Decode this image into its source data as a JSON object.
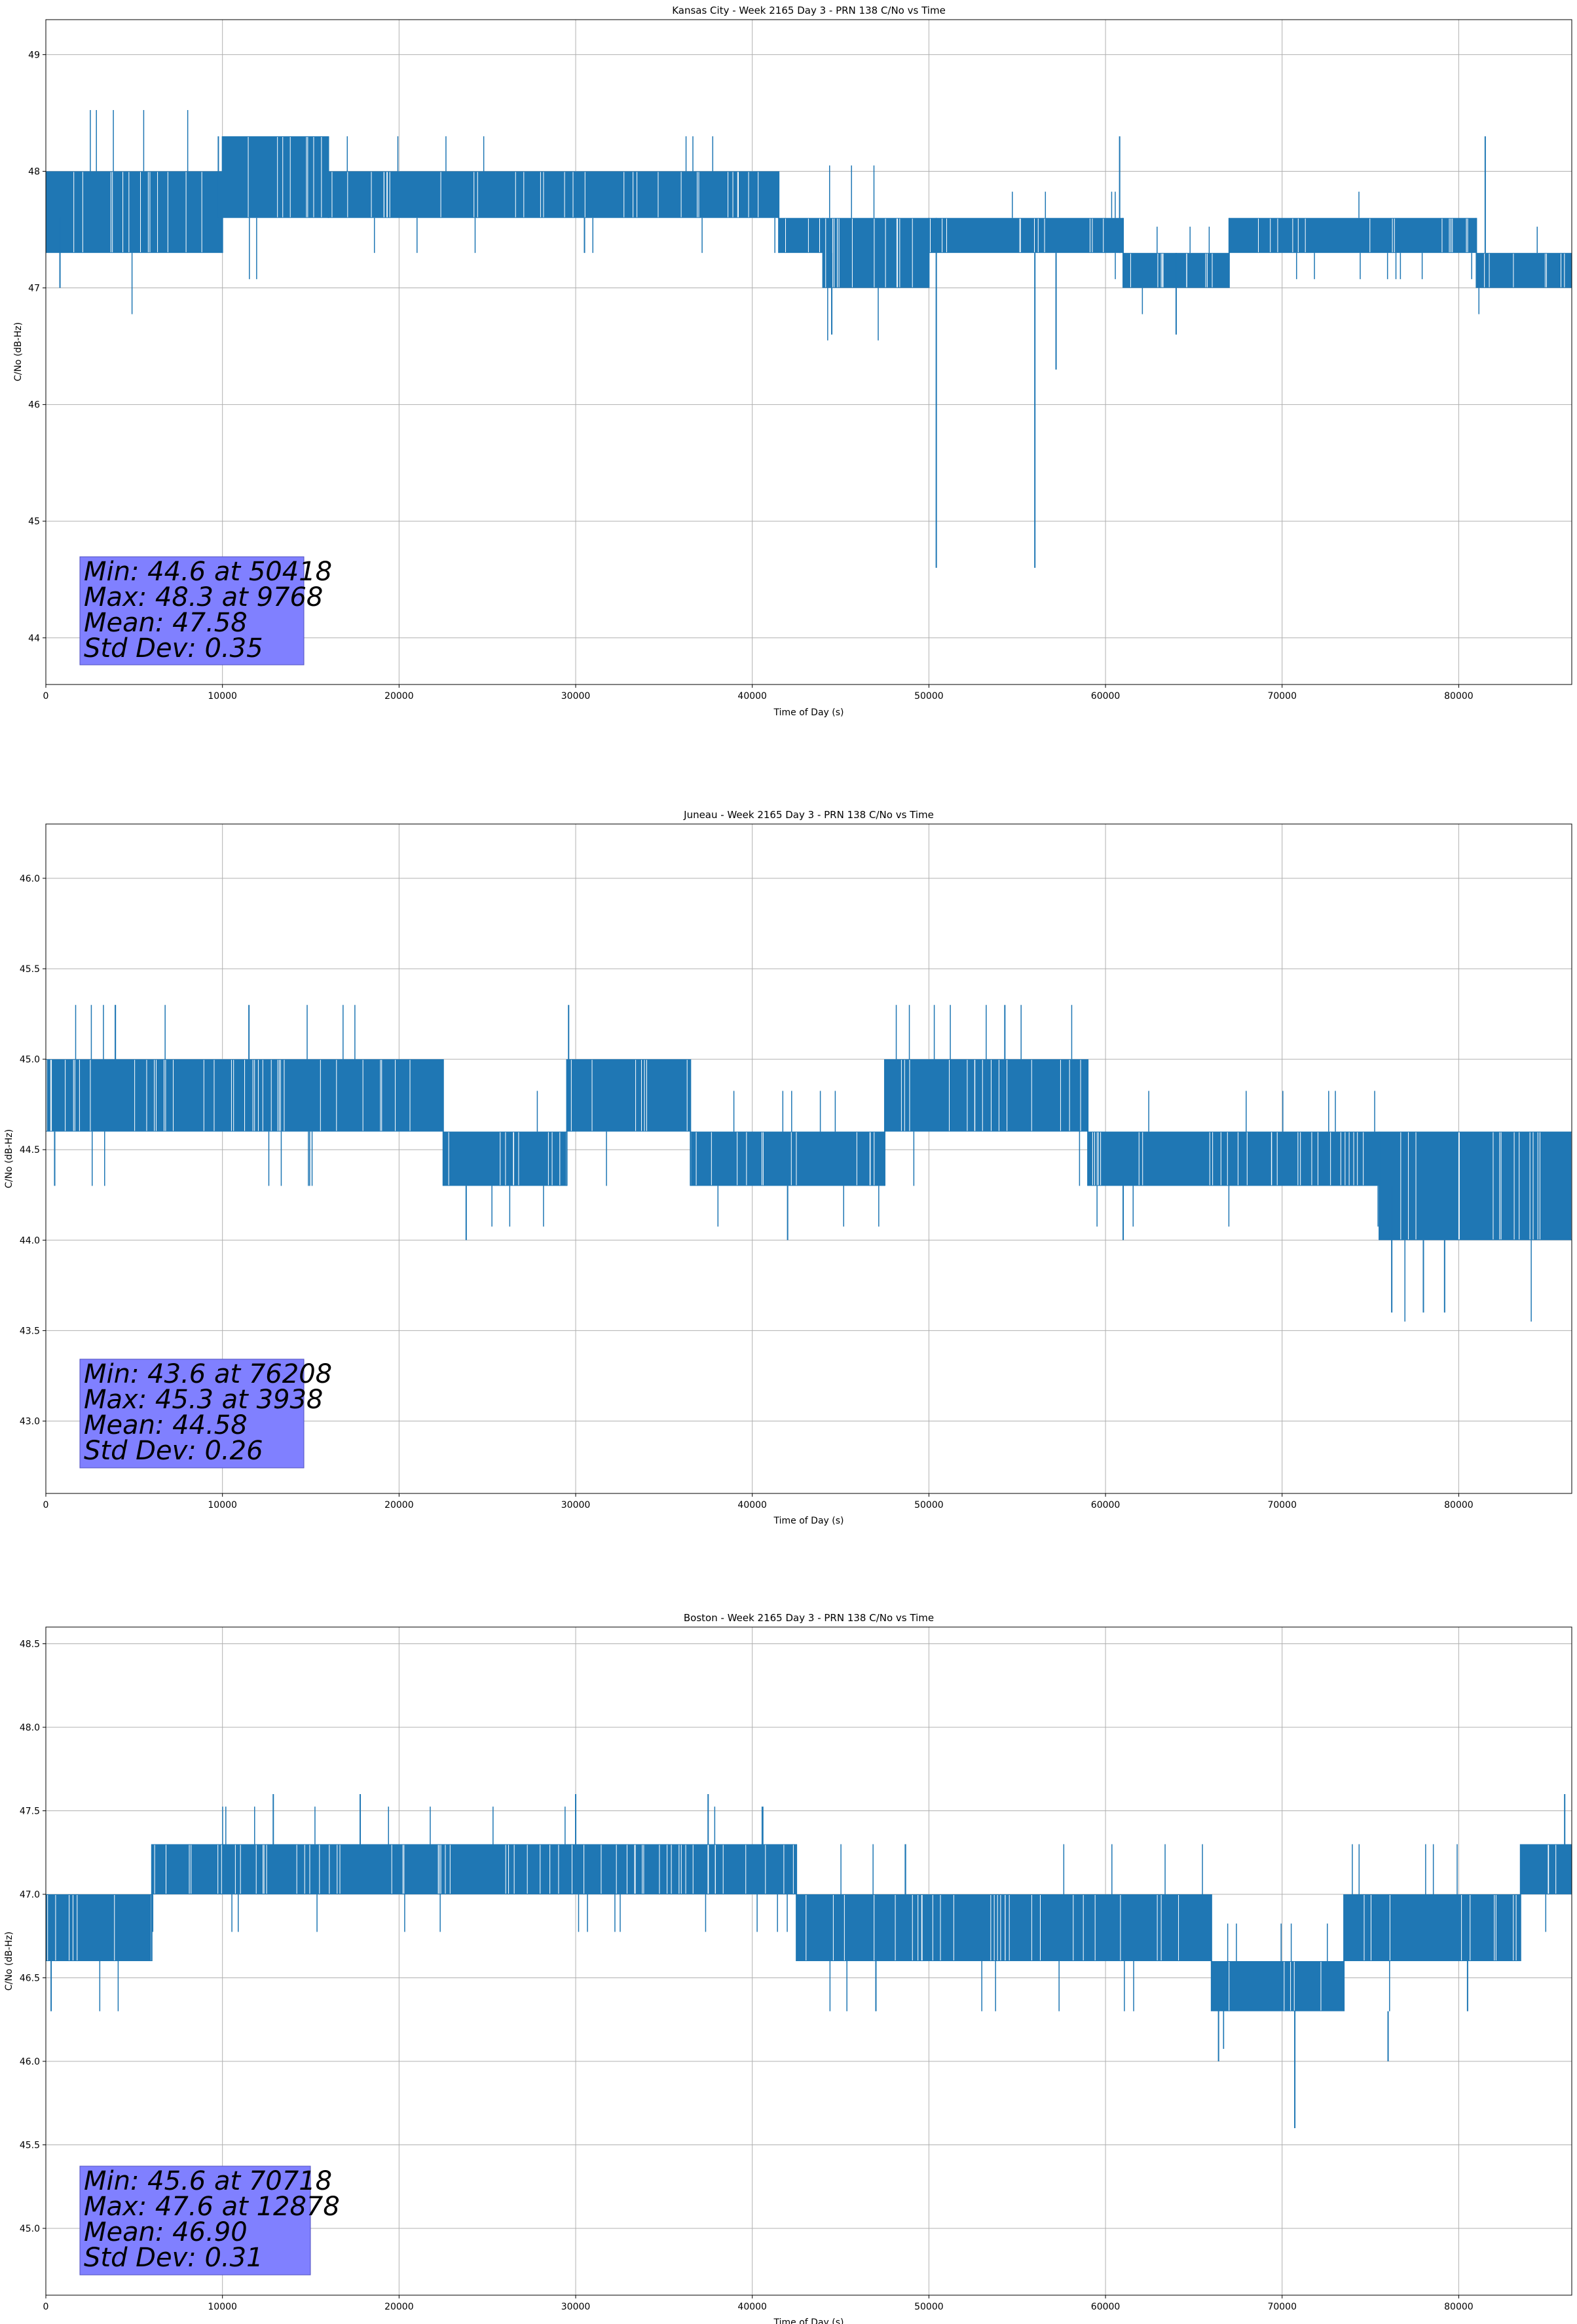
{
  "chart_data": [
    {
      "type": "line",
      "title": "Kansas City - Week 2165 Day 3 - PRN 138 C/No vs Time",
      "xlabel": "Time of Day (s)",
      "ylabel": "C/No (dB-Hz)",
      "xlim": [
        0,
        86400
      ],
      "ylim": [
        43.6,
        49.3
      ],
      "xticks": [
        0,
        10000,
        20000,
        30000,
        40000,
        50000,
        60000,
        70000,
        80000
      ],
      "yticks": [
        44,
        45,
        46,
        47,
        48,
        49
      ],
      "ytick_labels": [
        "44",
        "45",
        "46",
        "47",
        "48",
        "49"
      ],
      "grid": true,
      "series_color": "#1f77b4",
      "stats_box_color": "#8080ff",
      "stats": [
        "Min: 44.6 at 50418",
        "Max: 48.3 at 9768",
        "Mean: 47.58",
        "Std Dev: 0.35"
      ],
      "band_segments": [
        {
          "x0": 0,
          "x1": 10000,
          "lo": 47.3,
          "hi": 48.0
        },
        {
          "x0": 10000,
          "x1": 16000,
          "lo": 47.6,
          "hi": 48.3
        },
        {
          "x0": 16000,
          "x1": 41500,
          "lo": 47.6,
          "hi": 48.0
        },
        {
          "x0": 41500,
          "x1": 44000,
          "lo": 47.3,
          "hi": 47.6
        },
        {
          "x0": 44000,
          "x1": 50000,
          "lo": 47.0,
          "hi": 47.6
        },
        {
          "x0": 50000,
          "x1": 61000,
          "lo": 47.3,
          "hi": 47.6
        },
        {
          "x0": 61000,
          "x1": 67000,
          "lo": 47.0,
          "hi": 47.3
        },
        {
          "x0": 67000,
          "x1": 81000,
          "lo": 47.3,
          "hi": 47.6
        },
        {
          "x0": 81000,
          "x1": 86400,
          "lo": 47.0,
          "hi": 47.3
        }
      ],
      "spikes": [
        {
          "x": 50418,
          "lo": 44.6,
          "hi": 47.6
        },
        {
          "x": 56000,
          "lo": 44.6,
          "hi": 47.3
        },
        {
          "x": 57200,
          "lo": 46.3,
          "hi": 47.3
        },
        {
          "x": 9768,
          "lo": 47.6,
          "hi": 48.3
        },
        {
          "x": 60800,
          "lo": 47.3,
          "hi": 48.3
        },
        {
          "x": 81500,
          "lo": 47.3,
          "hi": 48.3
        },
        {
          "x": 800,
          "lo": 47.0,
          "hi": 47.6
        },
        {
          "x": 44500,
          "lo": 46.6,
          "hi": 47.3
        },
        {
          "x": 64000,
          "lo": 46.6,
          "hi": 47.3
        },
        {
          "x": 30500,
          "lo": 47.3,
          "hi": 47.6
        }
      ]
    },
    {
      "type": "line",
      "title": "Juneau - Week 2165 Day 3 - PRN 138 C/No vs Time",
      "xlabel": "Time of Day (s)",
      "ylabel": "C/No (dB-Hz)",
      "xlim": [
        0,
        86400
      ],
      "ylim": [
        42.6,
        46.3
      ],
      "xticks": [
        0,
        10000,
        20000,
        30000,
        40000,
        50000,
        60000,
        70000,
        80000
      ],
      "yticks": [
        43.0,
        43.5,
        44.0,
        44.5,
        45.0,
        45.5,
        46.0
      ],
      "ytick_labels": [
        "43.0",
        "43.5",
        "44.0",
        "44.5",
        "45.0",
        "45.5",
        "46.0"
      ],
      "grid": true,
      "series_color": "#1f77b4",
      "stats_box_color": "#8080ff",
      "stats": [
        "Min: 43.6 at 76208",
        "Max: 45.3 at 3938",
        "Mean: 44.58",
        "Std Dev: 0.26"
      ],
      "band_segments": [
        {
          "x0": 0,
          "x1": 22500,
          "lo": 44.6,
          "hi": 45.0
        },
        {
          "x0": 22500,
          "x1": 29500,
          "lo": 44.3,
          "hi": 44.6
        },
        {
          "x0": 29500,
          "x1": 36500,
          "lo": 44.6,
          "hi": 45.0
        },
        {
          "x0": 36500,
          "x1": 47500,
          "lo": 44.3,
          "hi": 44.6
        },
        {
          "x0": 47500,
          "x1": 59000,
          "lo": 44.6,
          "hi": 45.0
        },
        {
          "x0": 59000,
          "x1": 75500,
          "lo": 44.3,
          "hi": 44.6
        },
        {
          "x0": 75500,
          "x1": 86400,
          "lo": 44.0,
          "hi": 44.6
        }
      ],
      "spikes": [
        {
          "x": 3938,
          "lo": 45.0,
          "hi": 45.3
        },
        {
          "x": 11500,
          "lo": 45.0,
          "hi": 45.3
        },
        {
          "x": 29600,
          "lo": 45.0,
          "hi": 45.3
        },
        {
          "x": 54300,
          "lo": 45.0,
          "hi": 45.3
        },
        {
          "x": 23800,
          "lo": 44.0,
          "hi": 44.3
        },
        {
          "x": 42000,
          "lo": 44.0,
          "hi": 44.3
        },
        {
          "x": 61000,
          "lo": 44.0,
          "hi": 44.3
        },
        {
          "x": 76208,
          "lo": 43.6,
          "hi": 44.3
        },
        {
          "x": 78000,
          "lo": 43.6,
          "hi": 44.0
        },
        {
          "x": 79200,
          "lo": 43.6,
          "hi": 44.0
        },
        {
          "x": 500,
          "lo": 44.3,
          "hi": 44.6
        }
      ]
    },
    {
      "type": "line",
      "title": "Boston - Week 2165 Day 3 - PRN 138 C/No vs Time",
      "xlabel": "Time of Day (s)",
      "ylabel": "C/No (dB-Hz)",
      "xlim": [
        0,
        86400
      ],
      "ylim": [
        44.6,
        48.6
      ],
      "xticks": [
        0,
        10000,
        20000,
        30000,
        40000,
        50000,
        60000,
        70000,
        80000
      ],
      "yticks": [
        45.0,
        45.5,
        46.0,
        46.5,
        47.0,
        47.5,
        48.0,
        48.5
      ],
      "ytick_labels": [
        "45.0",
        "45.5",
        "46.0",
        "46.5",
        "47.0",
        "47.5",
        "48.0",
        "48.5"
      ],
      "grid": true,
      "series_color": "#1f77b4",
      "stats_box_color": "#8080ff",
      "stats": [
        "Min: 45.6 at 70718",
        "Max: 47.6 at 12878",
        "Mean: 46.90",
        "Std Dev: 0.31"
      ],
      "band_segments": [
        {
          "x0": 0,
          "x1": 6000,
          "lo": 46.6,
          "hi": 47.0
        },
        {
          "x0": 6000,
          "x1": 42500,
          "lo": 47.0,
          "hi": 47.3
        },
        {
          "x0": 42500,
          "x1": 66000,
          "lo": 46.6,
          "hi": 47.0
        },
        {
          "x0": 66000,
          "x1": 73500,
          "lo": 46.3,
          "hi": 46.6
        },
        {
          "x0": 73500,
          "x1": 83500,
          "lo": 46.6,
          "hi": 47.0
        },
        {
          "x0": 83500,
          "x1": 86400,
          "lo": 47.0,
          "hi": 47.3
        }
      ],
      "spikes": [
        {
          "x": 12878,
          "lo": 47.3,
          "hi": 47.6
        },
        {
          "x": 17800,
          "lo": 47.3,
          "hi": 47.6
        },
        {
          "x": 30000,
          "lo": 47.3,
          "hi": 47.6
        },
        {
          "x": 37500,
          "lo": 47.3,
          "hi": 47.6
        },
        {
          "x": 86000,
          "lo": 47.3,
          "hi": 47.6
        },
        {
          "x": 70718,
          "lo": 45.6,
          "hi": 46.3
        },
        {
          "x": 66400,
          "lo": 46.0,
          "hi": 46.3
        },
        {
          "x": 76000,
          "lo": 46.0,
          "hi": 46.3
        },
        {
          "x": 300,
          "lo": 46.3,
          "hi": 46.6
        },
        {
          "x": 47000,
          "lo": 46.3,
          "hi": 46.6
        },
        {
          "x": 80500,
          "lo": 46.3,
          "hi": 46.6
        }
      ]
    }
  ]
}
